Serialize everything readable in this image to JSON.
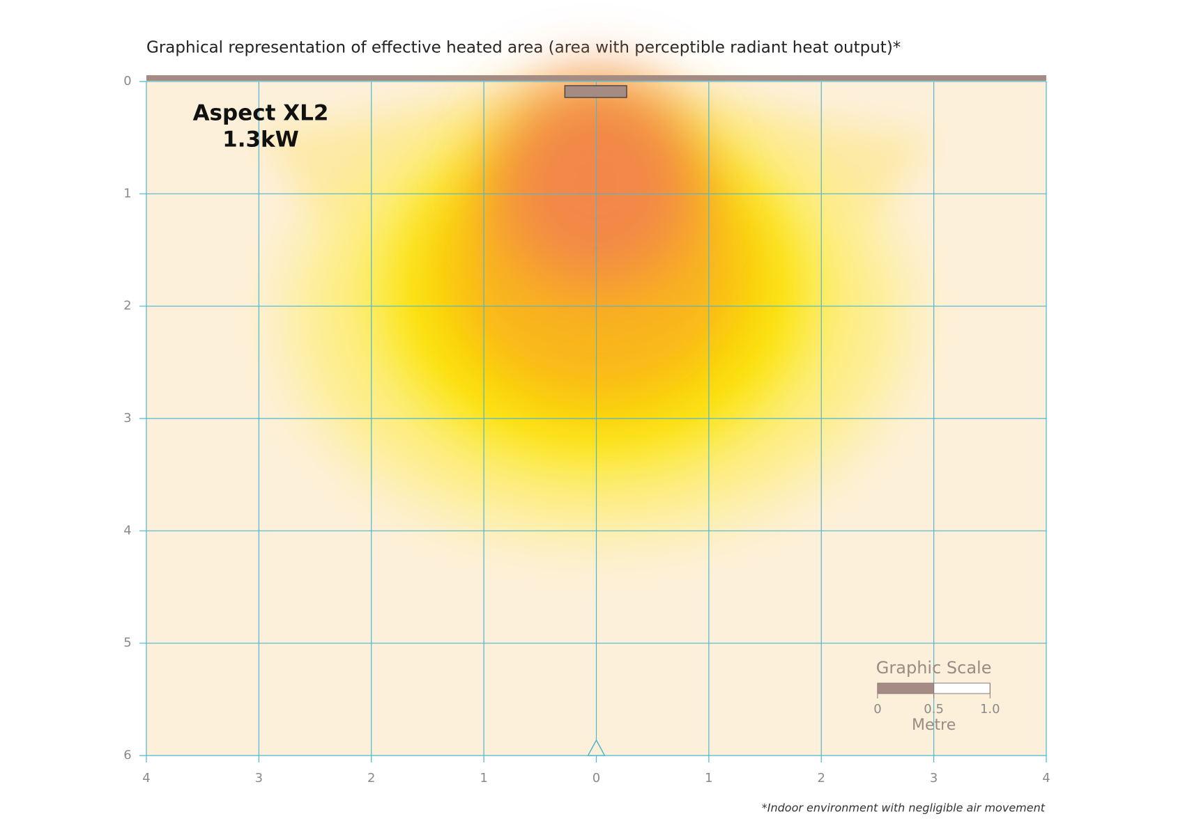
{
  "chart_data": {
    "type": "heat",
    "title": "Graphical representation of effective heated area (area with perceptible radiant heat output)*",
    "product": "Aspect XL2",
    "power": "1.3kW",
    "xlim": [
      -4,
      4
    ],
    "xticks": [
      {
        "value": -4,
        "label": "4"
      },
      {
        "value": -3,
        "label": "3"
      },
      {
        "value": -2,
        "label": "2"
      },
      {
        "value": -1,
        "label": "1"
      },
      0,
      1,
      2,
      3,
      4
    ],
    "ylim": [
      0,
      6
    ],
    "yticks": [
      0,
      1,
      2,
      3,
      4,
      5,
      6
    ],
    "grid": true,
    "scale": {
      "title": "Graphic Scale",
      "ticks": [
        0,
        0.5,
        {
          "value": 1,
          "label": "1.0"
        }
      ],
      "unit": "Metre"
    },
    "footnote": "*Indoor environment with negligible air movement"
  }
}
